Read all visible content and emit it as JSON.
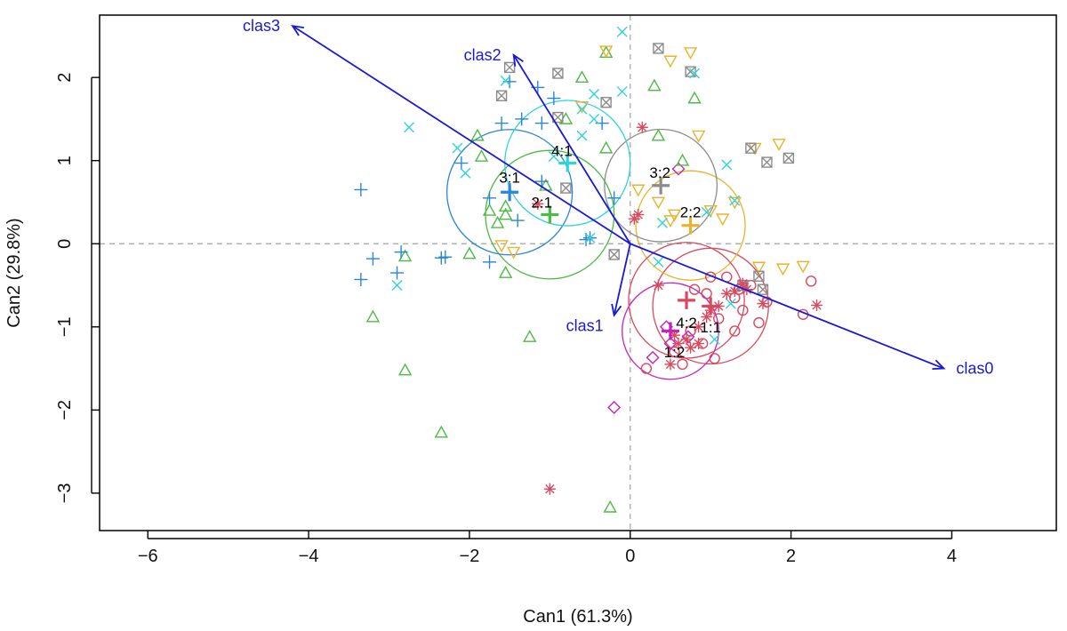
{
  "chart_data": {
    "type": "scatter",
    "title": "",
    "xlabel": "Can1 (61.3%)",
    "ylabel": "Can2 (29.8%)",
    "xlim": [
      -6.6,
      5.3
    ],
    "ylim": [
      -3.45,
      2.75
    ],
    "xticks": [
      -6,
      -4,
      -2,
      0,
      2,
      4
    ],
    "yticks": [
      -3,
      -2,
      -1,
      0,
      1,
      2
    ],
    "reference_lines": {
      "x": 0,
      "y": 0,
      "style": "dashed",
      "color": "#b0b0b0"
    },
    "grid": false,
    "legend": "none",
    "colors": {
      "g11": "#d9495f",
      "g12": "#c623b8",
      "g21": "#4dbb45",
      "g22": "#e8b32e",
      "g31": "#2b86d6",
      "g32": "#8c8c8c",
      "g41": "#2fd3dc",
      "g42": "#d9495f",
      "vector": "#1a1ad6"
    },
    "groups": [
      {
        "label": "1:1",
        "marker": "circle",
        "color_key": "g11",
        "mean": [
          1.0,
          -0.75
        ],
        "radius": 0.72,
        "label_pos": [
          1.0,
          -1.0
        ],
        "points": [
          [
            0.95,
            -0.6
          ],
          [
            1.3,
            -0.65
          ],
          [
            1.5,
            -0.5
          ],
          [
            1.1,
            -0.9
          ],
          [
            1.4,
            -0.8
          ],
          [
            1.6,
            -0.95
          ],
          [
            0.8,
            -0.55
          ],
          [
            1.2,
            -0.4
          ],
          [
            1.7,
            -0.7
          ],
          [
            2.15,
            -0.85
          ],
          [
            2.25,
            -0.45
          ],
          [
            0.65,
            -1.45
          ],
          [
            0.9,
            -1.2
          ],
          [
            1.05,
            -1.38
          ],
          [
            0.55,
            -1.3
          ],
          [
            1.35,
            -0.55
          ],
          [
            0.2,
            -1.5
          ],
          [
            1.3,
            -1.05
          ],
          [
            1.0,
            -0.4
          ],
          [
            0.75,
            -1.05
          ]
        ]
      },
      {
        "label": "1:2",
        "marker": "diamond",
        "color_key": "g12",
        "mean": [
          0.5,
          -1.05
        ],
        "radius": 0.6,
        "label_pos": [
          0.55,
          -1.3
        ],
        "points": [
          [
            -0.2,
            -1.97
          ],
          [
            0.28,
            -1.37
          ],
          [
            0.45,
            -1.0
          ],
          [
            0.5,
            -1.2
          ],
          [
            0.72,
            -1.12
          ],
          [
            0.6,
            0.9
          ]
        ]
      },
      {
        "label": "2:1",
        "marker": "triangle-up",
        "color_key": "g21",
        "mean": [
          -1.0,
          0.35
        ],
        "radius": 0.8,
        "label_pos": [
          -1.1,
          0.5
        ],
        "points": [
          [
            -1.9,
            1.3
          ],
          [
            -1.75,
            0.4
          ],
          [
            -1.65,
            0.25
          ],
          [
            -1.55,
            0.35
          ],
          [
            -1.55,
            -0.35
          ],
          [
            -2.0,
            -0.12
          ],
          [
            -2.8,
            -0.15
          ],
          [
            -3.2,
            -0.88
          ],
          [
            -2.8,
            -1.52
          ],
          [
            -2.35,
            -2.27
          ],
          [
            -1.25,
            -1.12
          ],
          [
            -0.25,
            -3.17
          ],
          [
            -0.3,
            2.3
          ],
          [
            -0.6,
            2.0
          ],
          [
            -0.8,
            1.5
          ],
          [
            -0.3,
            1.15
          ],
          [
            0.3,
            1.9
          ],
          [
            0.8,
            1.75
          ],
          [
            0.35,
            1.3
          ],
          [
            0.65,
            1.0
          ],
          [
            -1.05,
            0.7
          ],
          [
            -1.55,
            0.45
          ],
          [
            -1.85,
            1.05
          ]
        ]
      },
      {
        "label": "2:2",
        "marker": "triangle-down",
        "color_key": "g22",
        "mean": [
          0.75,
          0.22
        ],
        "radius": 0.68,
        "label_pos": [
          0.75,
          0.38
        ],
        "points": [
          [
            -0.3,
            2.32
          ],
          [
            0.75,
            2.3
          ],
          [
            0.5,
            2.2
          ],
          [
            -0.6,
            1.65
          ],
          [
            0.1,
            0.65
          ],
          [
            0.85,
            1.3
          ],
          [
            0.55,
            0.35
          ],
          [
            1.0,
            0.4
          ],
          [
            1.15,
            0.3
          ],
          [
            1.3,
            0.5
          ],
          [
            1.6,
            -0.28
          ],
          [
            1.55,
            1.15
          ],
          [
            1.85,
            1.2
          ],
          [
            2.15,
            -0.27
          ],
          [
            1.9,
            -0.3
          ],
          [
            -1.6,
            -0.02
          ],
          [
            -1.45,
            -0.1
          ],
          [
            0.35,
            0.5
          ],
          [
            0.5,
            0.28
          ]
        ]
      },
      {
        "label": "3:1",
        "marker": "plus",
        "color_key": "g31",
        "mean": [
          -1.5,
          0.62
        ],
        "radius": 0.78,
        "label_pos": [
          -1.5,
          0.8
        ],
        "points": [
          [
            -3.35,
            0.65
          ],
          [
            -3.35,
            -0.43
          ],
          [
            -3.2,
            -0.18
          ],
          [
            -2.9,
            -0.35
          ],
          [
            -2.85,
            -0.1
          ],
          [
            -2.35,
            -0.17
          ],
          [
            -2.3,
            -0.16
          ],
          [
            -1.75,
            -0.22
          ],
          [
            -2.1,
            0.97
          ],
          [
            -1.6,
            1.45
          ],
          [
            -1.5,
            1.95
          ],
          [
            -1.35,
            1.5
          ],
          [
            -1.15,
            1.88
          ],
          [
            -1.1,
            1.45
          ],
          [
            -0.95,
            1.75
          ],
          [
            -0.35,
            1.45
          ],
          [
            -0.2,
            0.55
          ],
          [
            -0.55,
            0.05
          ],
          [
            -0.5,
            0.07
          ],
          [
            -1.1,
            0.75
          ],
          [
            -1.4,
            0.28
          ],
          [
            -1.75,
            0.55
          ]
        ]
      },
      {
        "label": "3:2",
        "marker": "boxx",
        "color_key": "g32",
        "mean": [
          0.38,
          0.7
        ],
        "radius": 0.7,
        "label_pos": [
          0.37,
          0.86
        ],
        "points": [
          [
            -1.6,
            1.78
          ],
          [
            -1.5,
            2.12
          ],
          [
            -0.9,
            2.05
          ],
          [
            -0.3,
            1.7
          ],
          [
            0.35,
            2.35
          ],
          [
            0.75,
            2.07
          ],
          [
            -0.9,
            1.52
          ],
          [
            -0.8,
            0.67
          ],
          [
            -0.2,
            -0.13
          ],
          [
            1.5,
            1.15
          ],
          [
            1.7,
            0.98
          ],
          [
            1.97,
            1.03
          ],
          [
            1.6,
            -0.39
          ],
          [
            1.65,
            -0.55
          ],
          [
            1.4,
            -0.5
          ]
        ]
      },
      {
        "label": "4:1",
        "marker": "x",
        "color_key": "g41",
        "mean": [
          -0.78,
          0.97
        ],
        "radius": 0.78,
        "label_pos": [
          -0.85,
          1.12
        ],
        "points": [
          [
            -1.55,
            1.96
          ],
          [
            -2.75,
            1.4
          ],
          [
            -2.15,
            1.15
          ],
          [
            -2.05,
            0.85
          ],
          [
            -0.1,
            2.55
          ],
          [
            -0.1,
            1.83
          ],
          [
            -0.6,
            1.62
          ],
          [
            -0.45,
            1.8
          ],
          [
            0.8,
            2.05
          ],
          [
            1.2,
            0.95
          ],
          [
            1.3,
            0.52
          ],
          [
            0.95,
            0.38
          ],
          [
            0.4,
            0.25
          ],
          [
            0.35,
            -0.22
          ],
          [
            1.25,
            -0.72
          ],
          [
            1.05,
            -1.15
          ],
          [
            -2.9,
            -0.5
          ],
          [
            -0.5,
            0.07
          ],
          [
            -0.45,
            1.5
          ],
          [
            -0.95,
            1.05
          ],
          [
            -0.6,
            1.3
          ]
        ]
      },
      {
        "label": "4:2",
        "marker": "asterisk",
        "color_key": "g42",
        "mean": [
          0.7,
          -0.68
        ],
        "radius": 0.72,
        "label_pos": [
          0.7,
          -0.95
        ],
        "points": [
          [
            -1.0,
            -2.95
          ],
          [
            0.15,
            1.4
          ],
          [
            0.1,
            0.35
          ],
          [
            0.05,
            0.3
          ],
          [
            0.35,
            -0.5
          ],
          [
            0.7,
            -1.15
          ],
          [
            0.85,
            -1.0
          ],
          [
            0.95,
            -0.88
          ],
          [
            1.1,
            -0.75
          ],
          [
            1.2,
            -0.6
          ],
          [
            1.3,
            -0.57
          ],
          [
            1.4,
            -0.48
          ],
          [
            1.45,
            -0.55
          ],
          [
            1.65,
            -0.72
          ],
          [
            2.32,
            -0.74
          ],
          [
            0.5,
            -1.45
          ],
          [
            0.6,
            -1.2
          ],
          [
            0.75,
            -1.25
          ],
          [
            1.0,
            -0.8
          ],
          [
            -1.15,
            0.48
          ],
          [
            0.55,
            -1.1
          ],
          [
            0.85,
            -1.2
          ]
        ]
      }
    ],
    "vectors": [
      {
        "label": "clas0",
        "end": [
          3.9,
          -1.5
        ]
      },
      {
        "label": "clas1",
        "end": [
          -0.2,
          -0.86
        ]
      },
      {
        "label": "clas2",
        "end": [
          -1.45,
          2.27
        ]
      },
      {
        "label": "clas3",
        "end": [
          -4.2,
          2.62
        ]
      }
    ]
  }
}
